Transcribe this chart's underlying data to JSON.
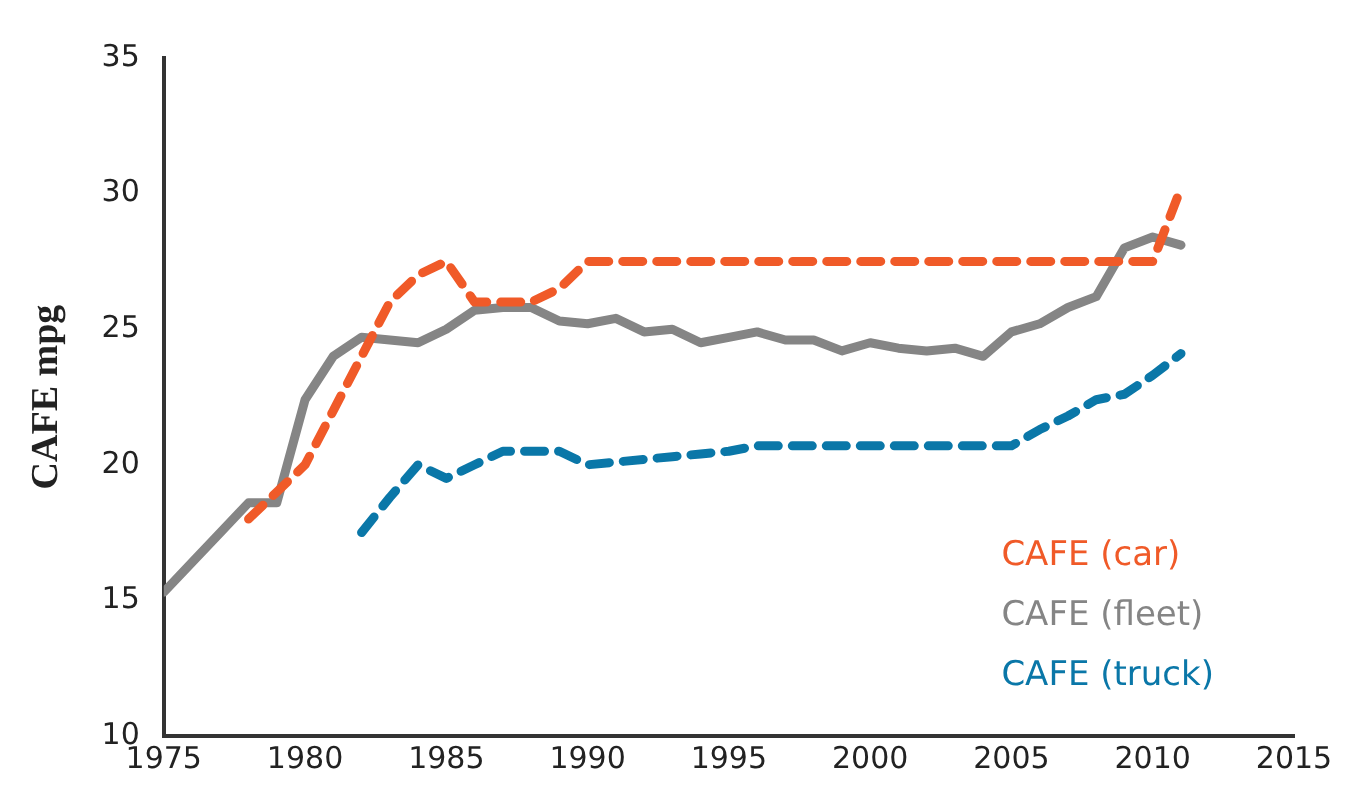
{
  "chart_data": {
    "type": "line",
    "ylabel": "CAFE mpg",
    "xlim": [
      1975,
      2015
    ],
    "xticks": [
      1975,
      1980,
      1985,
      1990,
      1995,
      2000,
      2005,
      2010,
      2015
    ],
    "ylim": [
      10,
      35
    ],
    "yticks": [
      10,
      15,
      20,
      25,
      30,
      35
    ],
    "grid": false,
    "legend": "bottom right",
    "marker": "none",
    "series": [
      {
        "name": "CAFE (car)",
        "color": "#f05a28",
        "line_style": "dashed",
        "x": [
          1978,
          1979,
          1980,
          1981,
          1982,
          1983,
          1984,
          1985,
          1986,
          1987,
          1988,
          1989,
          1990,
          1995,
          2000,
          2005,
          2010,
          2011
        ],
        "values": [
          18,
          19,
          20,
          22,
          24,
          26,
          27,
          27.5,
          26,
          26,
          26,
          26.5,
          27.5,
          27.5,
          27.5,
          27.5,
          27.5,
          30.2
        ]
      },
      {
        "name": "CAFE (fleet)",
        "color": "#858585",
        "line_style": "solid",
        "x": [
          1975,
          1976,
          1977,
          1978,
          1979,
          1980,
          1981,
          1982,
          1983,
          1984,
          1985,
          1986,
          1987,
          1988,
          1989,
          1990,
          1991,
          1992,
          1993,
          1994,
          1995,
          1996,
          1997,
          1998,
          1999,
          2000,
          2001,
          2002,
          2003,
          2004,
          2005,
          2006,
          2007,
          2008,
          2009,
          2010,
          2011
        ],
        "values": [
          15.3,
          16.4,
          17.5,
          18.6,
          18.6,
          22.4,
          24,
          24.7,
          24.6,
          24.5,
          25,
          25.7,
          25.8,
          25.8,
          25.3,
          25.2,
          25.4,
          24.9,
          25,
          24.5,
          24.7,
          24.9,
          24.6,
          24.6,
          24.2,
          24.5,
          24.3,
          24.2,
          24.3,
          24,
          24.9,
          25.2,
          25.8,
          26.2,
          28,
          28.4,
          28.1
        ]
      },
      {
        "name": "CAFE (truck)",
        "color": "#0a77a8",
        "line_style": "dashed",
        "x": [
          1982,
          1983,
          1984,
          1985,
          1986,
          1987,
          1988,
          1989,
          1990,
          1991,
          1992,
          1993,
          1994,
          1995,
          1996,
          2000,
          2004,
          2005,
          2006,
          2007,
          2008,
          2009,
          2010,
          2011
        ],
        "values": [
          17.5,
          18.8,
          20,
          19.5,
          20,
          20.5,
          20.5,
          20.5,
          20,
          20.1,
          20.2,
          20.3,
          20.4,
          20.5,
          20.7,
          20.7,
          20.7,
          20.7,
          21.3,
          21.8,
          22.4,
          22.6,
          23.3,
          24.1
        ]
      }
    ]
  }
}
